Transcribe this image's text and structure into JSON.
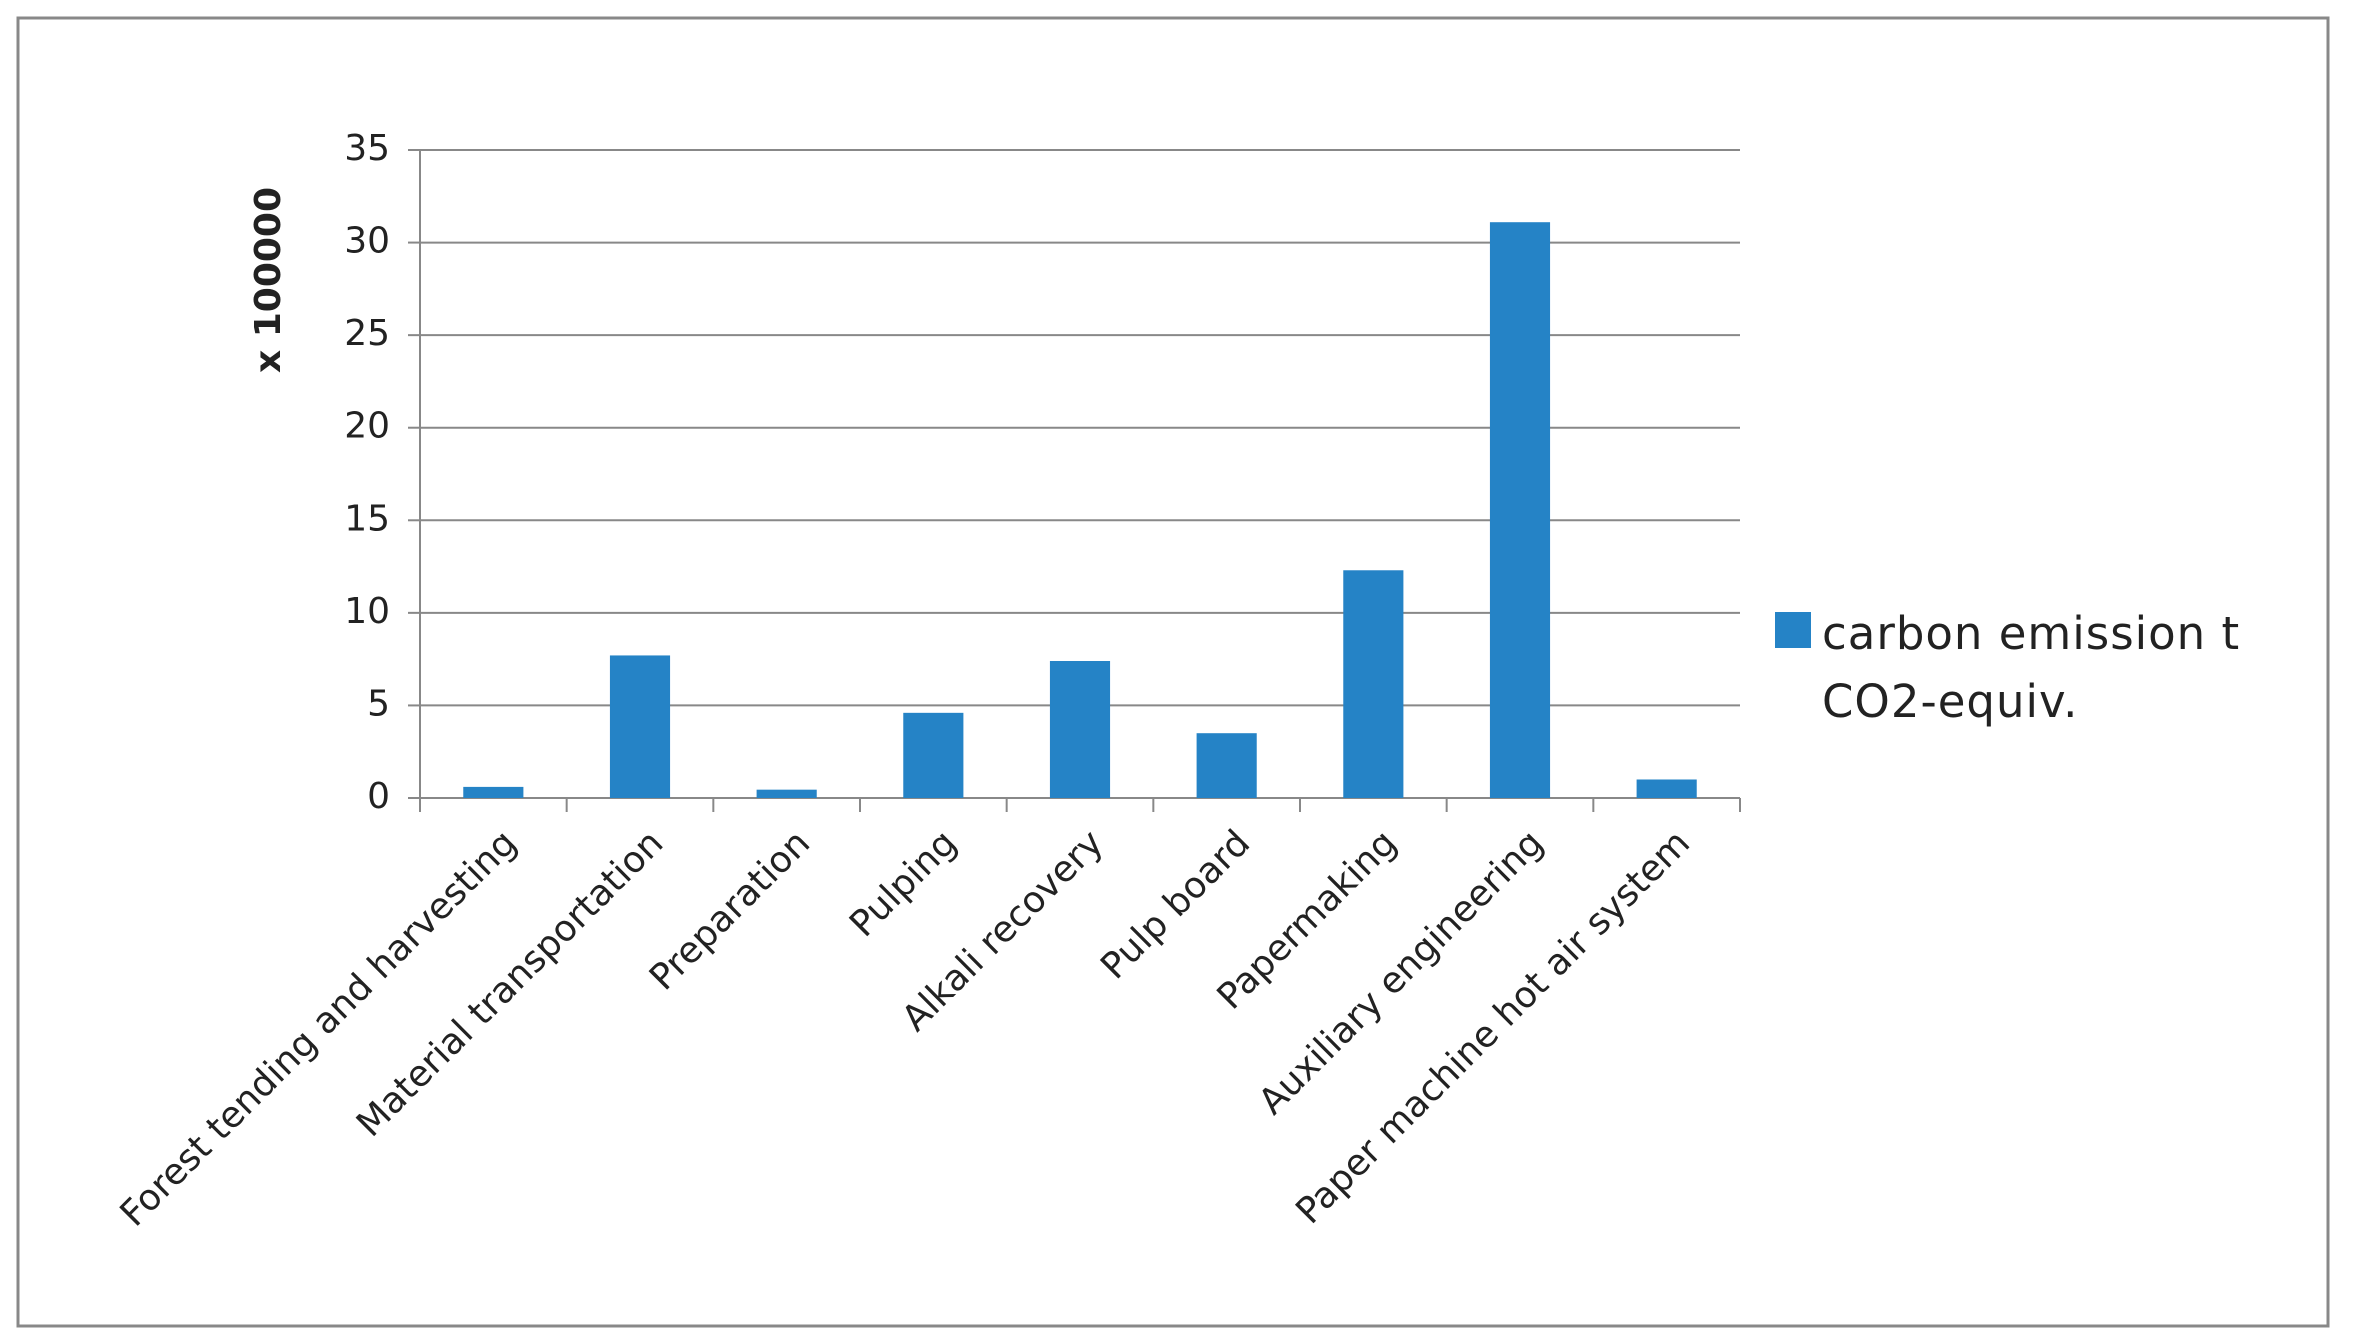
{
  "chart_data": {
    "type": "bar",
    "y_axis_label": "x 100000",
    "categories": [
      "Forest tending and harvesting",
      "Material transportation",
      "Preparation",
      "Pulping",
      "Alkali recovery",
      "Pulp board",
      "Papermaking",
      "Auxiliary engineering",
      "Paper machine hot air system"
    ],
    "series": [
      {
        "name": "carbon emission t CO2-equiv.",
        "color": "#2583c6",
        "values": [
          0.6,
          7.7,
          0.45,
          4.6,
          7.4,
          3.5,
          12.3,
          31.1,
          1.0
        ]
      }
    ],
    "ylim": [
      0,
      35
    ],
    "yticks": [
      0,
      5,
      10,
      15,
      20,
      25,
      30,
      35
    ],
    "grid": true,
    "legend": "right"
  }
}
